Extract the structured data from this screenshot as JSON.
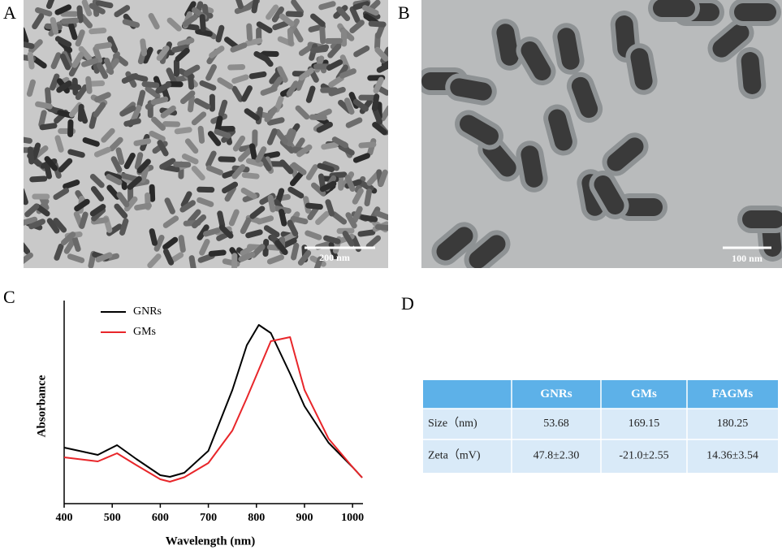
{
  "panel_labels": [
    "A",
    "B",
    "C",
    "D"
  ],
  "images": [
    {
      "scale_bar": "200 nm"
    },
    {
      "scale_bar": "100 nm"
    }
  ],
  "chart_data": {
    "type": "line",
    "x_label": "Wavelength (nm)",
    "y_label": "Absorbance",
    "x": [
      400,
      470,
      510,
      550,
      600,
      620,
      650,
      700,
      750,
      780,
      805,
      830,
      870,
      900,
      950,
      1000,
      1020
    ],
    "series": [
      {
        "name": "GNRs",
        "color": "#000000",
        "values": [
          0.276,
          0.24,
          0.288,
          0.22,
          0.14,
          0.132,
          0.152,
          0.26,
          0.56,
          0.78,
          0.88,
          0.84,
          0.64,
          0.48,
          0.3,
          0.18,
          0.128
        ]
      },
      {
        "name": "GMs",
        "color": "#e8262a",
        "values": [
          0.228,
          0.208,
          0.248,
          0.19,
          0.12,
          0.108,
          0.13,
          0.2,
          0.36,
          0.52,
          0.66,
          0.8,
          0.82,
          0.56,
          0.32,
          0.18,
          0.128
        ]
      }
    ],
    "xlim": [
      400,
      1020
    ],
    "ylim": [
      0,
      1
    ],
    "xticks": [
      400,
      500,
      600,
      700,
      800,
      900,
      1000
    ]
  },
  "table": {
    "columns": [
      "GNRs",
      "GMs",
      "FAGMs"
    ],
    "rows": [
      [
        "Size（nm)",
        "53.68",
        "169.15",
        "180.25"
      ],
      [
        "Zeta（mV)",
        "47.8±2.30",
        "-21.0±2.55",
        "14.36±3.54"
      ]
    ]
  }
}
